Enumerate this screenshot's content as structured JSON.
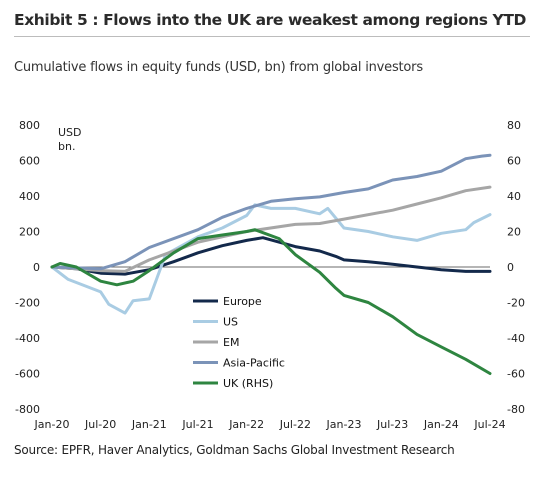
{
  "header": {
    "title": "Exhibit 5 : Flows into the UK are weakest among regions YTD",
    "subtitle": "Cumulative flows in equity funds (USD, bn) from global investors"
  },
  "footer": {
    "source": "Source: EPFR, Haver Analytics, Goldman Sachs Global Investment Research"
  },
  "chart_data": {
    "type": "line",
    "title": "Exhibit 5 : Flows into the UK are weakest among regions YTD",
    "subtitle": "Cumulative flows in equity funds (USD, bn) from global investors",
    "y_unit_label": [
      "USD",
      "bn."
    ],
    "x_ticks": [
      "Jan-20",
      "Jul-20",
      "Jan-21",
      "Jul-21",
      "Jan-22",
      "Jul-22",
      "Jan-23",
      "Jul-23",
      "Jan-24",
      "Jul-24"
    ],
    "x_range": [
      "Jan-20",
      "Jul-24"
    ],
    "ylim_left": [
      -800,
      800
    ],
    "yticks_left": [
      -800,
      -600,
      -400,
      -200,
      0,
      200,
      400,
      600,
      800
    ],
    "ylim_right": [
      -80,
      80
    ],
    "yticks_right": [
      -80,
      -60,
      -40,
      -20,
      0,
      20,
      40,
      60,
      80
    ],
    "grid": false,
    "legend_position": "center-left",
    "series": [
      {
        "name": "Europe",
        "color": "#13294b",
        "axis": "left",
        "points": [
          [
            "Jan-20",
            0
          ],
          [
            "Apr-20",
            -10
          ],
          [
            "Jul-20",
            -35
          ],
          [
            "Oct-20",
            -40
          ],
          [
            "Jan-21",
            -15
          ],
          [
            "Apr-21",
            30
          ],
          [
            "Jul-21",
            80
          ],
          [
            "Oct-21",
            120
          ],
          [
            "Jan-22",
            150
          ],
          [
            "Mar-22",
            165
          ],
          [
            "Jul-22",
            115
          ],
          [
            "Oct-22",
            90
          ],
          [
            "Dec-22",
            60
          ],
          [
            "Jan-23",
            40
          ],
          [
            "Apr-23",
            30
          ],
          [
            "Jul-23",
            15
          ],
          [
            "Oct-23",
            0
          ],
          [
            "Jan-24",
            -15
          ],
          [
            "Apr-24",
            -25
          ],
          [
            "Jul-24",
            -25
          ]
        ]
      },
      {
        "name": "US",
        "color": "#a9cce3",
        "axis": "left",
        "points": [
          [
            "Jan-20",
            0
          ],
          [
            "Mar-20",
            -70
          ],
          [
            "Jul-20",
            -140
          ],
          [
            "Aug-20",
            -210
          ],
          [
            "Oct-20",
            -260
          ],
          [
            "Nov-20",
            -190
          ],
          [
            "Jan-21",
            -180
          ],
          [
            "Mar-21",
            70
          ],
          [
            "Jul-21",
            170
          ],
          [
            "Oct-21",
            220
          ],
          [
            "Jan-22",
            290
          ],
          [
            "Feb-22",
            350
          ],
          [
            "Apr-22",
            330
          ],
          [
            "Jul-22",
            330
          ],
          [
            "Oct-22",
            300
          ],
          [
            "Nov-22",
            330
          ],
          [
            "Jan-23",
            220
          ],
          [
            "Apr-23",
            200
          ],
          [
            "Jul-23",
            170
          ],
          [
            "Oct-23",
            150
          ],
          [
            "Jan-24",
            190
          ],
          [
            "Apr-24",
            210
          ],
          [
            "May-24",
            250
          ],
          [
            "Jul-24",
            295
          ]
        ]
      },
      {
        "name": "EM",
        "color": "#a6a6a6",
        "axis": "left",
        "points": [
          [
            "Jan-20",
            0
          ],
          [
            "Jul-20",
            -20
          ],
          [
            "Oct-20",
            -25
          ],
          [
            "Jan-21",
            40
          ],
          [
            "Jul-21",
            140
          ],
          [
            "Oct-21",
            170
          ],
          [
            "Jan-22",
            200
          ],
          [
            "Jul-22",
            240
          ],
          [
            "Oct-22",
            245
          ],
          [
            "Jan-23",
            270
          ],
          [
            "Jul-23",
            320
          ],
          [
            "Oct-23",
            355
          ],
          [
            "Jan-24",
            390
          ],
          [
            "Apr-24",
            430
          ],
          [
            "Jul-24",
            450
          ]
        ]
      },
      {
        "name": "Asia-Pacific",
        "color": "#7b93b8",
        "axis": "left",
        "points": [
          [
            "Jan-20",
            0
          ],
          [
            "Jul-20",
            -10
          ],
          [
            "Oct-20",
            30
          ],
          [
            "Jan-21",
            110
          ],
          [
            "Jul-21",
            210
          ],
          [
            "Oct-21",
            280
          ],
          [
            "Jan-22",
            330
          ],
          [
            "Apr-22",
            370
          ],
          [
            "Jul-22",
            385
          ],
          [
            "Oct-22",
            395
          ],
          [
            "Jan-23",
            420
          ],
          [
            "Apr-23",
            440
          ],
          [
            "Jul-23",
            490
          ],
          [
            "Oct-23",
            510
          ],
          [
            "Jan-24",
            540
          ],
          [
            "Apr-24",
            610
          ],
          [
            "Jun-24",
            625
          ],
          [
            "Jul-24",
            630
          ]
        ]
      },
      {
        "name": "UK (RHS)",
        "color": "#2e8540",
        "axis": "right",
        "points": [
          [
            "Jan-20",
            0
          ],
          [
            "Feb-20",
            2
          ],
          [
            "Apr-20",
            0
          ],
          [
            "Jul-20",
            -8
          ],
          [
            "Sep-20",
            -10
          ],
          [
            "Nov-20",
            -8
          ],
          [
            "Jan-21",
            -2
          ],
          [
            "Apr-21",
            8
          ],
          [
            "Jul-21",
            16
          ],
          [
            "Oct-21",
            18
          ],
          [
            "Jan-22",
            20
          ],
          [
            "Feb-22",
            21
          ],
          [
            "May-22",
            16
          ],
          [
            "Jul-22",
            7
          ],
          [
            "Oct-22",
            -3
          ],
          [
            "Dec-22",
            -12
          ],
          [
            "Jan-23",
            -16
          ],
          [
            "Apr-23",
            -20
          ],
          [
            "Jul-23",
            -28
          ],
          [
            "Oct-23",
            -38
          ],
          [
            "Jan-24",
            -45
          ],
          [
            "Apr-24",
            -52
          ],
          [
            "Jul-24",
            -60
          ]
        ]
      }
    ]
  }
}
